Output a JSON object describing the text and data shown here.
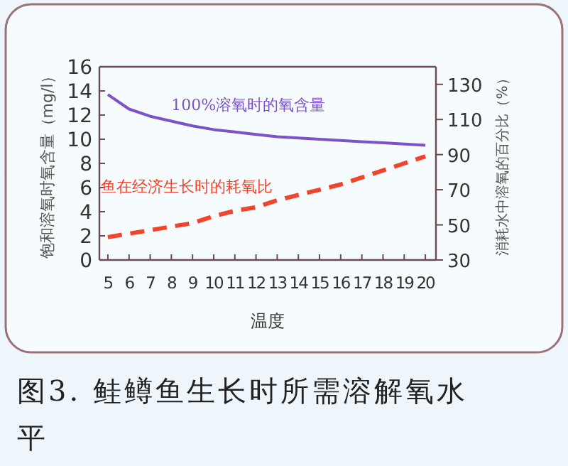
{
  "chart_data": {
    "type": "line",
    "title": "图3. 鲑鳟鱼生长时所需溶解氧水平",
    "xlabel": "温度",
    "ylabel": "饱和溶氧时氧含量（mg/l）",
    "y2label": "消耗水中溶氧的百分比（%）",
    "x": [
      5,
      6,
      7,
      8,
      9,
      10,
      11,
      12,
      13,
      14,
      15,
      16,
      17,
      18,
      19,
      20
    ],
    "xlim": [
      4.6,
      20.5
    ],
    "xticks": [
      5,
      6,
      7,
      8,
      9,
      10,
      11,
      12,
      13,
      14,
      15,
      16,
      17,
      18,
      19,
      20
    ],
    "ylim": [
      0,
      16
    ],
    "yticks": [
      0,
      2,
      4,
      6,
      8,
      10,
      12,
      14,
      16
    ],
    "y2lim": [
      30,
      140
    ],
    "y2ticks": [
      30,
      50,
      70,
      90,
      110,
      130
    ],
    "marker": "none",
    "series": [
      {
        "name": "100%溶氧时的氧含量",
        "color": "#7b52c8",
        "line_style": "solid",
        "values": [
          13.7,
          12.5,
          11.9,
          11.5,
          11.1,
          10.8,
          10.6,
          10.4,
          10.2,
          10.1,
          10.0,
          9.9,
          9.8,
          9.7,
          9.6,
          9.5
        ]
      },
      {
        "name": "鱼在经济生长时的耗氧比",
        "color": "#f0442c",
        "line_style": "dashed",
        "axis": "y2",
        "values": [
          43,
          45,
          47,
          49,
          51,
          55,
          58,
          60,
          64,
          67,
          70,
          73,
          77,
          81,
          85,
          89
        ]
      }
    ]
  }
}
